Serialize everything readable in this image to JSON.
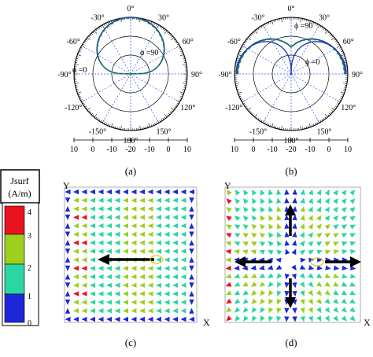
{
  "panel_labels": {
    "a": "(a)",
    "b": "(b)",
    "c": "(c)",
    "d": "(d)"
  },
  "polar": {
    "angle_labels": [
      "0°",
      "30°",
      "60°",
      "90°",
      "120°",
      "150°",
      "180°",
      "-150°",
      "-120°",
      "-90°",
      "-60°",
      "-30°"
    ],
    "radial_ticks": [
      "10",
      "0",
      "-10",
      "-20",
      "-10",
      "0",
      "10"
    ],
    "a": {
      "phi90_label": "ϕ =90",
      "phi0_label": "ϕ =0"
    },
    "b": {
      "phi90_label": "ϕ =90",
      "phi0_label": "ϕ =0"
    }
  },
  "colorbar": {
    "title_line1": "Jsurf",
    "title_line2": "(A/m)",
    "ticks": [
      "4",
      "3",
      "2",
      "1",
      "0"
    ],
    "colors": [
      "#e8141e",
      "#9ccf1e",
      "#2ad6a4",
      "#1c28d8"
    ]
  },
  "vector_plots": {
    "c": {
      "y_label": "Y",
      "x_label": "X"
    },
    "d": {
      "y_label": "Y",
      "x_label": "X"
    }
  },
  "series_colors": {
    "solid": "#1f3fb0",
    "dashed": "#22a022",
    "radial_lines": "#3050ff"
  }
}
